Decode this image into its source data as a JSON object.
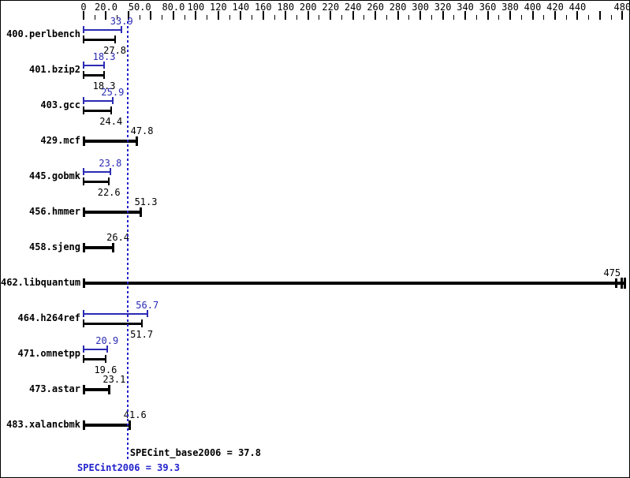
{
  "chart_data": {
    "type": "bar",
    "orientation": "horizontal",
    "title": "",
    "xlabel": "",
    "ylabel": "",
    "grid": false,
    "axis": {
      "min": 0,
      "max": 480,
      "tick_step": 10,
      "major_tick_step": 20,
      "labels": [
        {
          "text": "0",
          "value": 0
        },
        {
          "text": "20.0",
          "value": 20
        },
        {
          "text": "50.0",
          "value": 50
        },
        {
          "text": "80.0",
          "value": 80
        },
        {
          "text": "100",
          "value": 100
        },
        {
          "text": "120",
          "value": 120
        },
        {
          "text": "140",
          "value": 140
        },
        {
          "text": "160",
          "value": 160
        },
        {
          "text": "180",
          "value": 180
        },
        {
          "text": "200",
          "value": 200
        },
        {
          "text": "220",
          "value": 220
        },
        {
          "text": "240",
          "value": 240
        },
        {
          "text": "260",
          "value": 260
        },
        {
          "text": "280",
          "value": 280
        },
        {
          "text": "300",
          "value": 300
        },
        {
          "text": "320",
          "value": 320
        },
        {
          "text": "340",
          "value": 340
        },
        {
          "text": "360",
          "value": 360
        },
        {
          "text": "380",
          "value": 380
        },
        {
          "text": "400",
          "value": 400
        },
        {
          "text": "420",
          "value": 420
        },
        {
          "text": "440",
          "value": 440
        },
        {
          "text": "480",
          "value": 480
        }
      ]
    },
    "series": [
      {
        "name": "SPECint2006 (peak)",
        "color": "#2b2bb4"
      },
      {
        "name": "SPECint_base2006 (base)",
        "color": "#000000"
      }
    ],
    "benchmarks": [
      {
        "name": "400.perlbench",
        "peak": 33.9,
        "peak_text": "33.9",
        "base": 27.8,
        "base_text": "27.8"
      },
      {
        "name": "401.bzip2",
        "peak": 18.3,
        "peak_text": "18.3",
        "base": 18.3,
        "base_text": "18.3"
      },
      {
        "name": "403.gcc",
        "peak": 25.9,
        "peak_text": "25.9",
        "base": 24.4,
        "base_text": "24.4"
      },
      {
        "name": "429.mcf",
        "base": 47.8,
        "base_text": "47.8"
      },
      {
        "name": "445.gobmk",
        "peak": 23.8,
        "peak_text": "23.8",
        "base": 22.6,
        "base_text": "22.6"
      },
      {
        "name": "456.hmmer",
        "base": 51.3,
        "base_text": "51.3"
      },
      {
        "name": "458.sjeng",
        "base": 26.4,
        "base_text": "26.4"
      },
      {
        "name": "462.libquantum",
        "base": 475,
        "base_text": "475",
        "overflow": true
      },
      {
        "name": "464.h264ref",
        "peak": 56.7,
        "peak_text": "56.7",
        "base": 51.7,
        "base_text": "51.7"
      },
      {
        "name": "471.omnetpp",
        "peak": 20.9,
        "peak_text": "20.9",
        "base": 19.6,
        "base_text": "19.6"
      },
      {
        "name": "473.astar",
        "base": 23.1,
        "base_text": "23.1"
      },
      {
        "name": "483.xalancbmk",
        "base": 41.6,
        "base_text": "41.6"
      }
    ],
    "means": {
      "base_value": 37.8,
      "base_label": "SPECint_base2006 = 37.8",
      "peak_value": 39.3,
      "peak_label": "SPECint2006 = 39.3"
    },
    "colors": {
      "peak_blue": "#2b2bb4",
      "base_black": "#000000",
      "mean_line_blue": "#2222cc",
      "peak_mean_text_blue": "#2222cc"
    }
  }
}
